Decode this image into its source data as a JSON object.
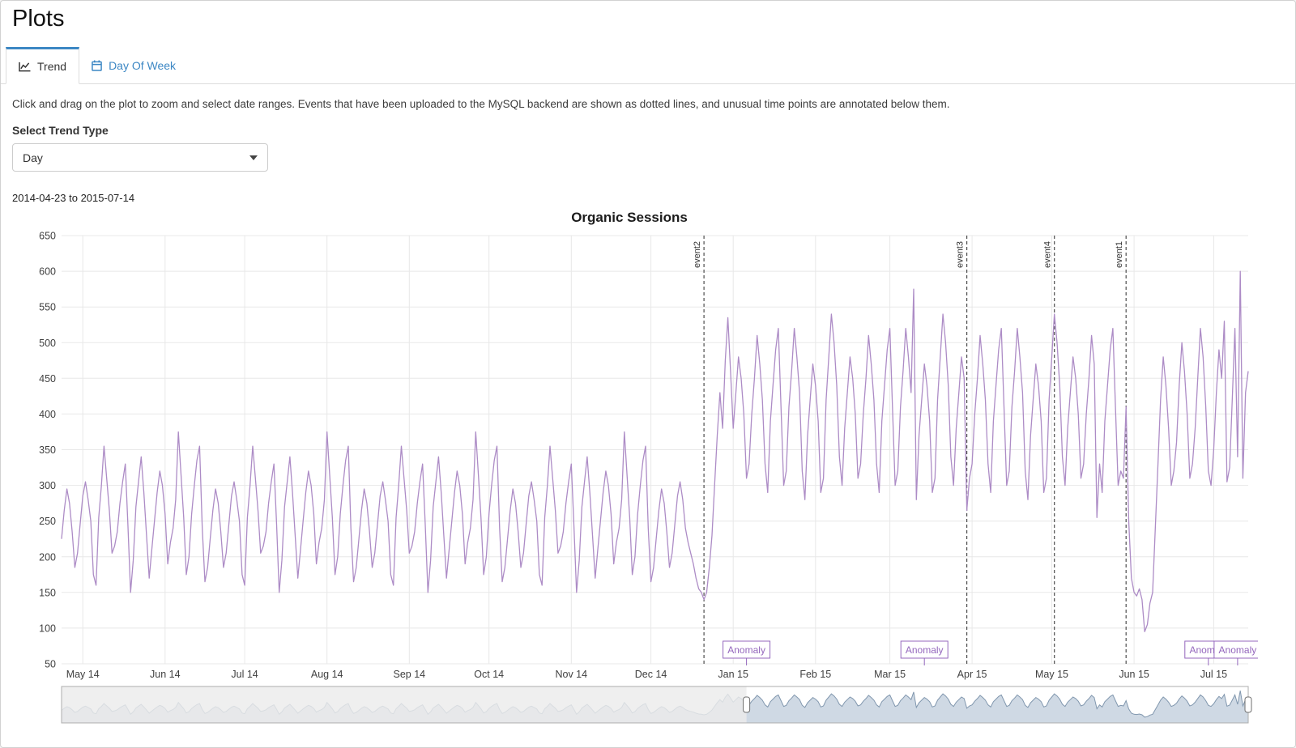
{
  "page": {
    "title": "Plots"
  },
  "colors": {
    "accent_blue": "#3c87c4"
  },
  "tabs": [
    {
      "label": "Trend",
      "icon": "trend-line-icon",
      "active": true
    },
    {
      "label": "Day Of Week",
      "icon": "calendar-icon",
      "active": false
    }
  ],
  "instructions": "Click and drag on the plot to zoom and select date ranges. Events that have been uploaded to the MySQL backend are shown as dotted lines, and unusual time points are annotated below them.",
  "trend_type": {
    "label": "Select Trend Type",
    "selected": "Day"
  },
  "date_range": "2014-04-23 to 2015-07-14",
  "chart_data": {
    "type": "line",
    "title": "Organic Sessions",
    "start_date": "2014-04-23",
    "end_date": "2015-07-14",
    "ylim": [
      50,
      650
    ],
    "ytick_step": 50,
    "grid": true,
    "line_color": "#ad8cc6",
    "grid_color": "#e8e8e8",
    "event_line_color": "#4d4d4d",
    "anomaly_color": "#9467bd",
    "x_ticks": [
      {
        "day": 8,
        "label": "May 14"
      },
      {
        "day": 39,
        "label": "Jun 14"
      },
      {
        "day": 69,
        "label": "Jul 14"
      },
      {
        "day": 100,
        "label": "Aug 14"
      },
      {
        "day": 131,
        "label": "Sep 14"
      },
      {
        "day": 161,
        "label": "Oct 14"
      },
      {
        "day": 192,
        "label": "Nov 14"
      },
      {
        "day": 222,
        "label": "Dec 14"
      },
      {
        "day": 253,
        "label": "Jan 15"
      },
      {
        "day": 284,
        "label": "Feb 15"
      },
      {
        "day": 312,
        "label": "Mar 15"
      },
      {
        "day": 343,
        "label": "Apr 15"
      },
      {
        "day": 373,
        "label": "May 15"
      },
      {
        "day": 404,
        "label": "Jun 15"
      },
      {
        "day": 434,
        "label": "Jul 15"
      }
    ],
    "events": [
      {
        "label": "event2",
        "day": 242
      },
      {
        "label": "event3",
        "day": 341
      },
      {
        "label": "event4",
        "day": 374
      },
      {
        "label": "event1",
        "day": 401
      }
    ],
    "anomalies": [
      {
        "label": "Anomaly",
        "day": 258
      },
      {
        "label": "Anomaly",
        "day": 325
      },
      {
        "label": "Anomaly",
        "day": 432
      },
      {
        "label": "Anomaly",
        "day": 443
      }
    ],
    "values": [
      225,
      265,
      295,
      275,
      235,
      185,
      205,
      245,
      285,
      305,
      280,
      250,
      175,
      160,
      255,
      300,
      355,
      310,
      265,
      205,
      215,
      235,
      275,
      305,
      330,
      245,
      150,
      195,
      270,
      305,
      340,
      290,
      230,
      170,
      210,
      250,
      290,
      320,
      300,
      260,
      190,
      220,
      240,
      280,
      375,
      315,
      255,
      175,
      200,
      260,
      300,
      335,
      355,
      240,
      165,
      185,
      225,
      265,
      295,
      275,
      235,
      185,
      205,
      245,
      285,
      305,
      280,
      250,
      175,
      160,
      255,
      300,
      355,
      310,
      265,
      205,
      215,
      235,
      275,
      305,
      330,
      245,
      150,
      195,
      270,
      305,
      340,
      290,
      230,
      170,
      210,
      250,
      290,
      320,
      300,
      260,
      190,
      220,
      240,
      280,
      375,
      315,
      255,
      175,
      200,
      260,
      300,
      335,
      355,
      240,
      165,
      185,
      225,
      265,
      295,
      275,
      235,
      185,
      205,
      245,
      285,
      305,
      280,
      250,
      175,
      160,
      255,
      300,
      355,
      310,
      265,
      205,
      215,
      235,
      275,
      305,
      330,
      245,
      150,
      195,
      270,
      305,
      340,
      290,
      230,
      170,
      210,
      250,
      290,
      320,
      300,
      260,
      190,
      220,
      240,
      280,
      375,
      315,
      255,
      175,
      200,
      260,
      300,
      335,
      355,
      240,
      165,
      185,
      225,
      265,
      295,
      275,
      235,
      185,
      205,
      245,
      285,
      305,
      280,
      250,
      175,
      160,
      255,
      300,
      355,
      310,
      265,
      205,
      215,
      235,
      275,
      305,
      330,
      245,
      150,
      195,
      270,
      305,
      340,
      290,
      230,
      170,
      210,
      250,
      290,
      320,
      300,
      260,
      190,
      220,
      240,
      280,
      375,
      315,
      255,
      175,
      200,
      260,
      300,
      335,
      355,
      240,
      165,
      185,
      225,
      265,
      295,
      275,
      235,
      185,
      205,
      245,
      285,
      305,
      280,
      240,
      220,
      205,
      190,
      170,
      155,
      150,
      140,
      150,
      185,
      230,
      300,
      370,
      430,
      380,
      475,
      535,
      460,
      380,
      430,
      480,
      450,
      400,
      310,
      330,
      400,
      450,
      510,
      470,
      420,
      330,
      290,
      390,
      440,
      490,
      520,
      410,
      300,
      320,
      410,
      460,
      520,
      480,
      430,
      320,
      280,
      370,
      420,
      470,
      440,
      390,
      290,
      310,
      420,
      480,
      540,
      500,
      440,
      340,
      300,
      380,
      430,
      480,
      450,
      400,
      310,
      330,
      400,
      450,
      510,
      470,
      420,
      330,
      290,
      390,
      440,
      490,
      520,
      410,
      300,
      320,
      410,
      460,
      520,
      480,
      430,
      575,
      280,
      370,
      420,
      470,
      440,
      390,
      290,
      310,
      420,
      480,
      540,
      500,
      440,
      340,
      300,
      380,
      430,
      480,
      450,
      265,
      310,
      330,
      400,
      450,
      510,
      470,
      420,
      330,
      290,
      390,
      440,
      490,
      520,
      410,
      300,
      320,
      410,
      460,
      520,
      480,
      430,
      320,
      280,
      370,
      420,
      470,
      440,
      390,
      290,
      310,
      420,
      480,
      540,
      500,
      440,
      340,
      300,
      380,
      430,
      480,
      450,
      400,
      310,
      330,
      400,
      450,
      510,
      470,
      255,
      330,
      290,
      390,
      440,
      490,
      520,
      410,
      300,
      320,
      310,
      410,
      250,
      170,
      150,
      145,
      155,
      140,
      95,
      105,
      135,
      150,
      240,
      330,
      420,
      480,
      440,
      380,
      300,
      320,
      360,
      440,
      500,
      460,
      400,
      310,
      330,
      380,
      450,
      520,
      480,
      410,
      320,
      300,
      350,
      430,
      490,
      450,
      530,
      305,
      325,
      420,
      520,
      340,
      600,
      310,
      430,
      460
    ]
  },
  "rangeslider": {
    "window_start_day": 258,
    "window_end_day": 447,
    "line_color": "#8197ae",
    "fill_color": "#cfd9e4"
  }
}
